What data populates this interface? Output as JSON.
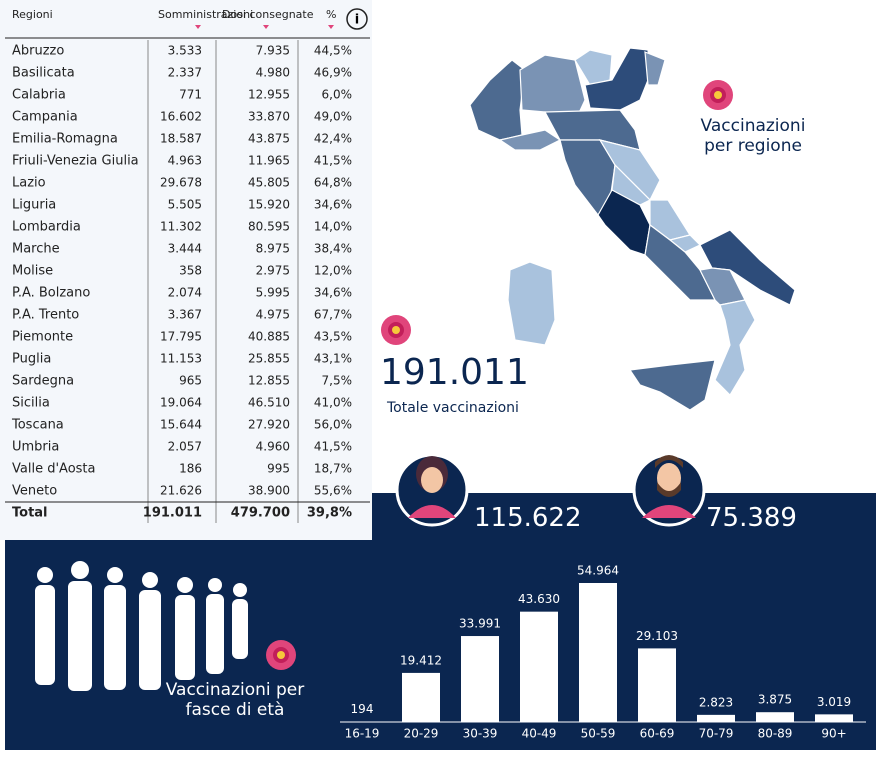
{
  "table": {
    "headers": [
      "Regioni",
      "Somministrazioni",
      "Dosi consegnate",
      "%"
    ],
    "rows": [
      [
        "Abruzzo",
        "3.533",
        "7.935",
        "44,5%"
      ],
      [
        "Basilicata",
        "2.337",
        "4.980",
        "46,9%"
      ],
      [
        "Calabria",
        "771",
        "12.955",
        "6,0%"
      ],
      [
        "Campania",
        "16.602",
        "33.870",
        "49,0%"
      ],
      [
        "Emilia-Romagna",
        "18.587",
        "43.875",
        "42,4%"
      ],
      [
        "Friuli-Venezia Giulia",
        "4.963",
        "11.965",
        "41,5%"
      ],
      [
        "Lazio",
        "29.678",
        "45.805",
        "64,8%"
      ],
      [
        "Liguria",
        "5.505",
        "15.920",
        "34,6%"
      ],
      [
        "Lombardia",
        "11.302",
        "80.595",
        "14,0%"
      ],
      [
        "Marche",
        "3.444",
        "8.975",
        "38,4%"
      ],
      [
        "Molise",
        "358",
        "2.975",
        "12,0%"
      ],
      [
        "P.A. Bolzano",
        "2.074",
        "5.995",
        "34,6%"
      ],
      [
        "P.A. Trento",
        "3.367",
        "4.975",
        "67,7%"
      ],
      [
        "Piemonte",
        "17.795",
        "40.885",
        "43,5%"
      ],
      [
        "Puglia",
        "11.153",
        "25.855",
        "43,1%"
      ],
      [
        "Sardegna",
        "965",
        "12.855",
        "7,5%"
      ],
      [
        "Sicilia",
        "19.064",
        "46.510",
        "41,0%"
      ],
      [
        "Toscana",
        "15.644",
        "27.920",
        "56,0%"
      ],
      [
        "Umbria",
        "2.057",
        "4.960",
        "41,5%"
      ],
      [
        "Valle d'Aosta",
        "186",
        "995",
        "18,7%"
      ],
      [
        "Veneto",
        "21.626",
        "38.900",
        "55,6%"
      ]
    ],
    "total": [
      "Total",
      "191.011",
      "479.700",
      "39,8%"
    ]
  },
  "map": {
    "title": "Vaccinazioni per regione"
  },
  "summary": {
    "value": "191.011",
    "label": "Totale vaccinazioni"
  },
  "gender": {
    "female": "115.622",
    "male": "75.389"
  },
  "chart_data": {
    "type": "bar",
    "title": "Vaccinazioni per fasce di età",
    "categories": [
      "16-19",
      "20-29",
      "30-39",
      "40-49",
      "50-59",
      "60-69",
      "70-79",
      "80-89",
      "90+"
    ],
    "values": [
      194,
      19412,
      33991,
      43630,
      54964,
      29103,
      2823,
      3875,
      3019
    ],
    "value_labels": [
      "194",
      "19.412",
      "33.991",
      "43.630",
      "54.964",
      "29.103",
      "2.823",
      "3.875",
      "3.019"
    ],
    "color": "#ffffff"
  }
}
